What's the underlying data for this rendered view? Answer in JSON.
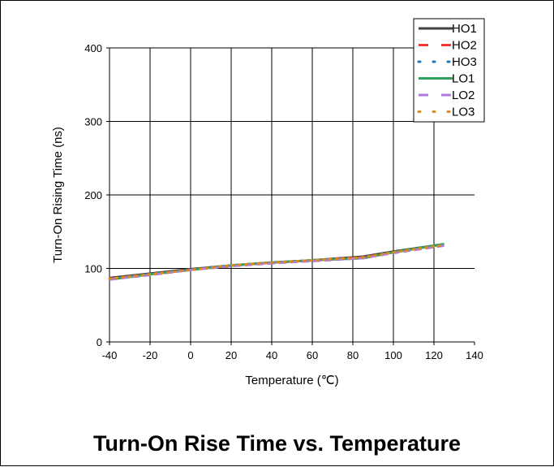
{
  "caption": "Turn-On Rise Time vs. Temperature",
  "chart_data": {
    "type": "line",
    "title": "",
    "xlabel": "Temperature (℃)",
    "ylabel": "Turn-On Rising Time (ns)",
    "xlim": [
      -40,
      140
    ],
    "ylim": [
      0,
      400
    ],
    "xticks": [
      -40,
      -20,
      0,
      20,
      40,
      60,
      80,
      100,
      120,
      140
    ],
    "yticks": [
      0,
      100,
      200,
      300,
      400
    ],
    "grid": true,
    "legend_position": "top-right",
    "series": [
      {
        "name": "HO1",
        "color": "#404040",
        "style": "solid",
        "x": [
          -40,
          -20,
          0,
          20,
          40,
          60,
          85,
          100,
          125
        ],
        "y": [
          87,
          93,
          99,
          104,
          108,
          111,
          116,
          123,
          133
        ]
      },
      {
        "name": "HO2",
        "color": "#ee3a3a",
        "style": "dashed",
        "x": [
          -40,
          -20,
          0,
          20,
          40,
          60,
          85,
          100,
          125
        ],
        "y": [
          86,
          92,
          98,
          104,
          108,
          111,
          115,
          122,
          132
        ]
      },
      {
        "name": "HO3",
        "color": "#1f77b4",
        "style": "dotted",
        "x": [
          -40,
          -20,
          0,
          20,
          40,
          60,
          85,
          100,
          125
        ],
        "y": [
          86,
          92,
          98,
          104,
          108,
          111,
          115,
          122,
          132
        ]
      },
      {
        "name": "LO1",
        "color": "#2ca25f",
        "style": "solid",
        "x": [
          -40,
          -20,
          0,
          20,
          40,
          60,
          85,
          100,
          125
        ],
        "y": [
          85,
          92,
          98,
          104,
          108,
          111,
          114,
          122,
          133
        ]
      },
      {
        "name": "LO2",
        "color": "#b07ae0",
        "style": "dashed",
        "x": [
          -40,
          -20,
          0,
          20,
          40,
          60,
          85,
          100,
          125
        ],
        "y": [
          85,
          91,
          98,
          103,
          107,
          110,
          114,
          121,
          131
        ]
      },
      {
        "name": "LO3",
        "color": "#d98c1a",
        "style": "dotted",
        "x": [
          -40,
          -20,
          0,
          20,
          40,
          60,
          85,
          100,
          125
        ],
        "y": [
          86,
          92,
          98,
          104,
          108,
          111,
          115,
          122,
          132
        ]
      }
    ]
  }
}
